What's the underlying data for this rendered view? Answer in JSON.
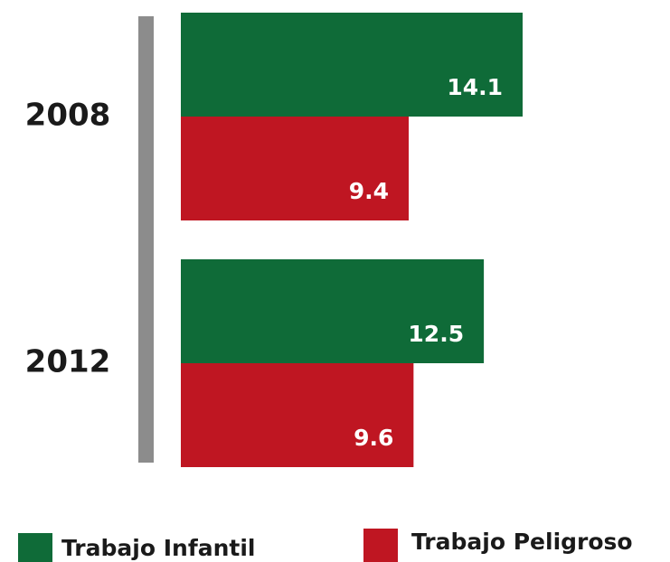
{
  "chart_data": {
    "type": "bar",
    "orientation": "horizontal",
    "categories": [
      "2008",
      "2012"
    ],
    "series": [
      {
        "name": "Trabajo Infantil",
        "color": "#0f6b38",
        "values": [
          14.1,
          12.5
        ]
      },
      {
        "name": "Trabajo Peligroso",
        "color": "#bf1622",
        "values": [
          9.4,
          9.6
        ]
      }
    ]
  }
}
